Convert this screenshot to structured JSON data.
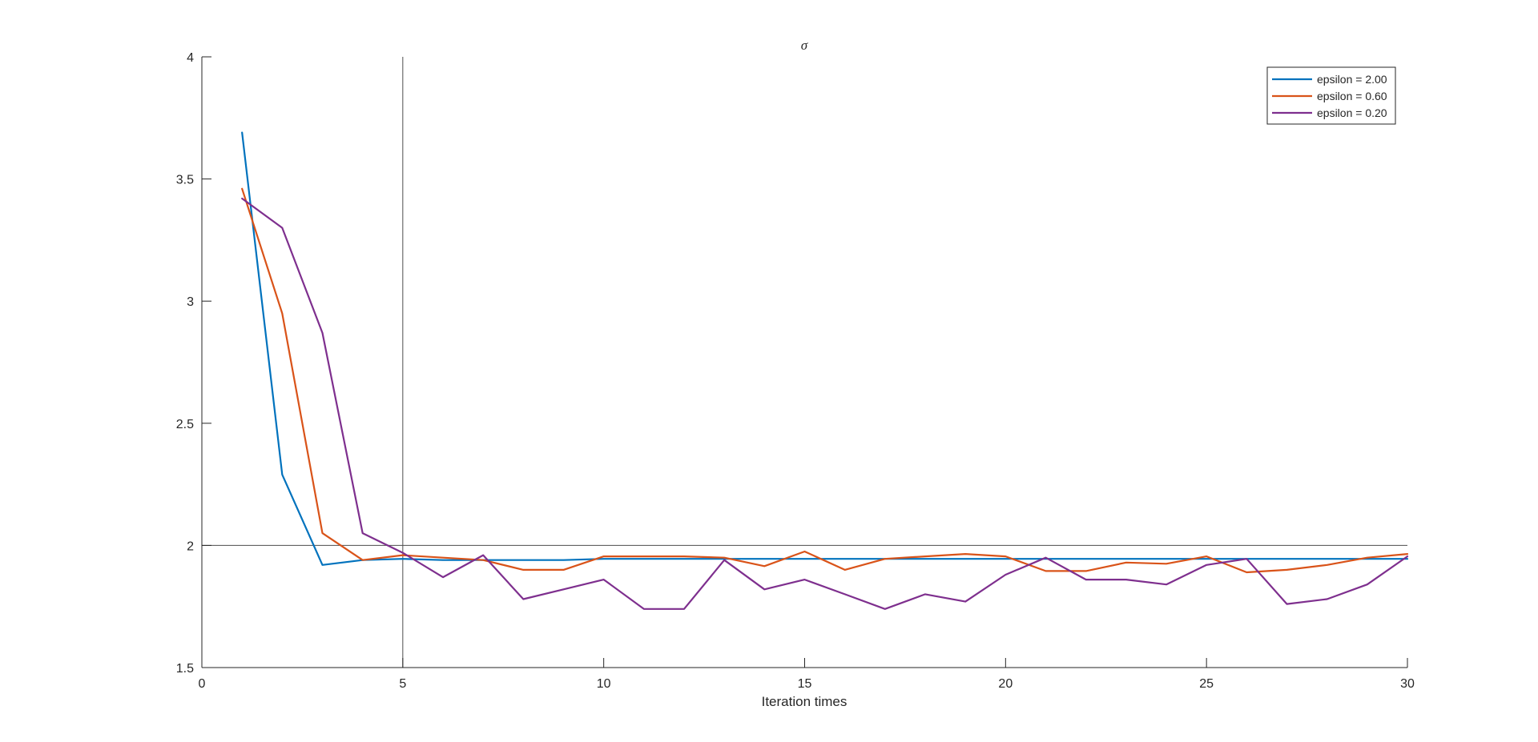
{
  "chart_data": {
    "type": "line",
    "title": "σ",
    "xlabel": "Iteration times",
    "ylabel": "",
    "xlim": [
      0,
      30
    ],
    "ylim": [
      1.5,
      4
    ],
    "xticks": [
      0,
      5,
      10,
      15,
      20,
      25,
      30
    ],
    "yticks": [
      1.5,
      2,
      2.5,
      3,
      3.5,
      4
    ],
    "xtick_labels": [
      "0",
      "5",
      "10",
      "15",
      "20",
      "25",
      "30"
    ],
    "ytick_labels": [
      "1.5",
      "2",
      "2.5",
      "3",
      "3.5",
      "4"
    ],
    "reference_lines": {
      "x": 5,
      "y": 2
    },
    "legend_position": "top-right",
    "x": [
      1,
      2,
      3,
      4,
      5,
      6,
      7,
      8,
      9,
      10,
      11,
      12,
      13,
      14,
      15,
      16,
      17,
      18,
      19,
      20,
      21,
      22,
      23,
      24,
      25,
      26,
      27,
      28,
      29,
      30
    ],
    "series": [
      {
        "name": "epsilon = 2.00",
        "color": "#0072BD",
        "values": [
          3.69,
          2.29,
          1.92,
          1.94,
          1.945,
          1.94,
          1.94,
          1.94,
          1.94,
          1.945,
          1.945,
          1.945,
          1.945,
          1.945,
          1.945,
          1.945,
          1.945,
          1.945,
          1.945,
          1.945,
          1.945,
          1.945,
          1.945,
          1.945,
          1.945,
          1.945,
          1.945,
          1.945,
          1.945,
          1.945
        ]
      },
      {
        "name": "epsilon = 0.60",
        "color": "#D95319",
        "values": [
          3.46,
          2.95,
          2.05,
          1.94,
          1.96,
          1.95,
          1.94,
          1.9,
          1.9,
          1.955,
          1.955,
          1.955,
          1.95,
          1.915,
          1.975,
          1.9,
          1.945,
          1.955,
          1.965,
          1.955,
          1.895,
          1.895,
          1.93,
          1.925,
          1.955,
          1.89,
          1.9,
          1.92,
          1.95,
          1.965
        ]
      },
      {
        "name": "epsilon = 0.20",
        "color": "#7E2F8E",
        "values": [
          3.42,
          3.3,
          2.87,
          2.05,
          1.97,
          1.87,
          1.96,
          1.78,
          1.82,
          1.86,
          1.74,
          1.74,
          1.94,
          1.82,
          1.86,
          1.8,
          1.74,
          1.8,
          1.77,
          1.88,
          1.95,
          1.86,
          1.86,
          1.84,
          1.92,
          1.945,
          1.76,
          1.78,
          1.84,
          1.955
        ]
      }
    ]
  }
}
